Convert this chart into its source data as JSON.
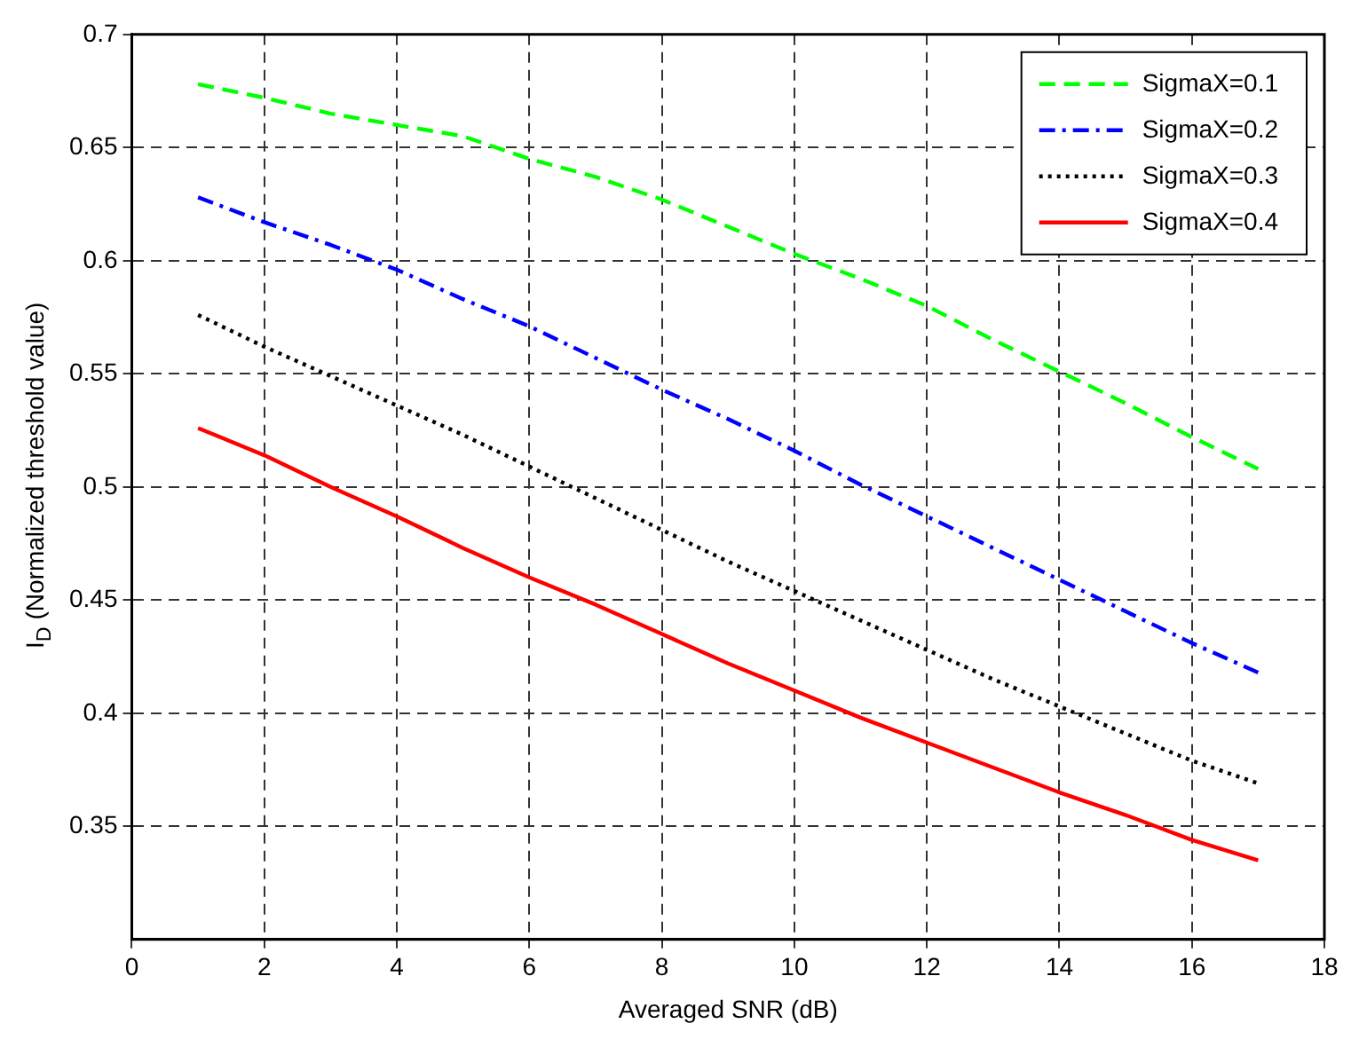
{
  "chart_data": {
    "type": "line",
    "xlabel": "Averaged SNR (dB)",
    "ylabel": "I$_{D}$ (Normalized threshold value)",
    "x": [
      1,
      2,
      3,
      4,
      5,
      6,
      7,
      8,
      9,
      10,
      11,
      12,
      13,
      14,
      15,
      16,
      17
    ],
    "series": [
      {
        "name": "SigmaX=0.1",
        "color": "#00ff00",
        "line_style": "dashed",
        "values": [
          0.678,
          0.672,
          0.665,
          0.66,
          0.655,
          0.645,
          0.637,
          0.627,
          0.615,
          0.603,
          0.592,
          0.58,
          0.565,
          0.551,
          0.537,
          0.522,
          0.508
        ]
      },
      {
        "name": "SigmaX=0.2",
        "color": "#0000ff",
        "line_style": "dashdot",
        "values": [
          0.628,
          0.617,
          0.607,
          0.596,
          0.583,
          0.571,
          0.557,
          0.543,
          0.53,
          0.516,
          0.501,
          0.487,
          0.473,
          0.459,
          0.445,
          0.431,
          0.418
        ]
      },
      {
        "name": "SigmaX=0.3",
        "color": "#000000",
        "line_style": "dotted",
        "values": [
          0.576,
          0.562,
          0.549,
          0.536,
          0.523,
          0.509,
          0.495,
          0.481,
          0.467,
          0.454,
          0.441,
          0.428,
          0.415,
          0.403,
          0.391,
          0.379,
          0.369
        ]
      },
      {
        "name": "SigmaX=0.4",
        "color": "#ff0000",
        "line_style": "solid",
        "values": [
          0.526,
          0.514,
          0.5,
          0.487,
          0.473,
          0.46,
          0.448,
          0.435,
          0.422,
          0.41,
          0.398,
          0.387,
          0.376,
          0.365,
          0.355,
          0.344,
          0.335
        ]
      }
    ],
    "xlim": [
      0,
      18
    ],
    "xticks": [
      0,
      2,
      4,
      6,
      8,
      10,
      12,
      14,
      16,
      18
    ],
    "ylim": [
      0.3,
      0.7
    ],
    "yticks": [
      0.35,
      0.4,
      0.45,
      0.5,
      0.55,
      0.6,
      0.65,
      0.7
    ],
    "grid": true,
    "legend": "top right",
    "marker": "none"
  }
}
